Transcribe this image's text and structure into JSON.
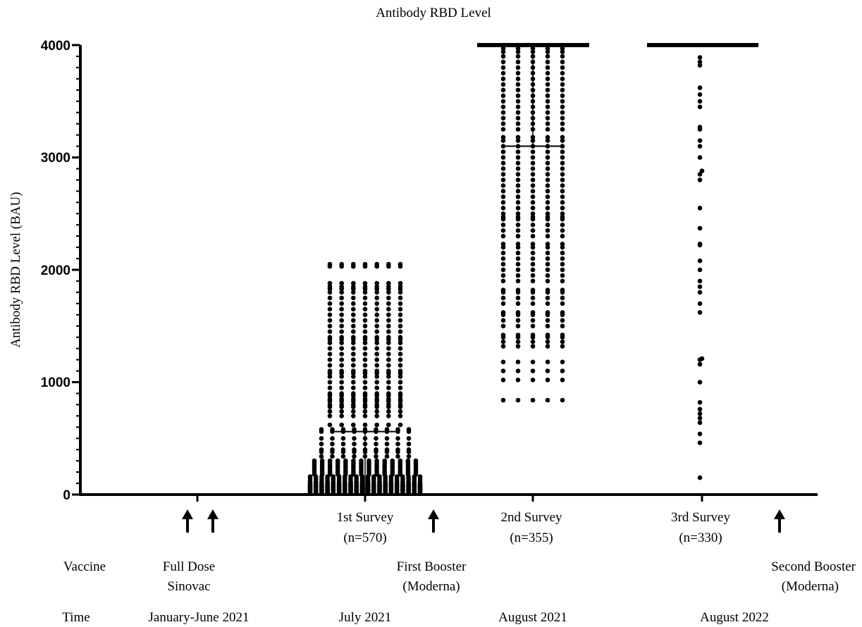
{
  "colors": {
    "ink": "#000000",
    "background": "#ffffff"
  },
  "chart_data": {
    "type": "scatter",
    "title": "Antibody RBD Level",
    "ylabel": "Antibody RBD Level (BAU)",
    "ylim": [
      0,
      4000
    ],
    "yticks": [
      "0",
      "1000",
      "2000",
      "3000",
      "4000"
    ],
    "grid": false,
    "legend": "none",
    "groups": [
      {
        "label": "1st Survey",
        "n_label": "(n=570)",
        "median": 560,
        "ceiling": false
      },
      {
        "label": "2nd Survey",
        "n_label": "(n=355)",
        "median": 3100,
        "ceiling": true
      },
      {
        "label": "3rd Survey",
        "n_label": "(n=330)",
        "median": 4000,
        "ceiling": true
      }
    ],
    "points": {
      "survey1": [
        20,
        25,
        30,
        35,
        40,
        45,
        50,
        55,
        60,
        65,
        70,
        75,
        80,
        85,
        90,
        100,
        110,
        120,
        140,
        160,
        180,
        200,
        220,
        240,
        260,
        280,
        300,
        340,
        380,
        400,
        450,
        500,
        560,
        580,
        620,
        700,
        740,
        780,
        800,
        830,
        850,
        880,
        900,
        950,
        1000,
        1050,
        1080,
        1100,
        1150,
        1200,
        1250,
        1300,
        1350,
        1380,
        1400,
        1450,
        1500,
        1550,
        1600,
        1650,
        1700,
        1750,
        1800,
        1830,
        1850,
        1880,
        2030,
        2050
      ],
      "survey2": [
        840,
        1020,
        1100,
        1180,
        1320,
        1360,
        1400,
        1420,
        1500,
        1550,
        1600,
        1620,
        1700,
        1750,
        1800,
        1820,
        1900,
        1950,
        2000,
        2050,
        2100,
        2150,
        2200,
        2230,
        2300,
        2350,
        2400,
        2450,
        2470,
        2500,
        2550,
        2600,
        2650,
        2700,
        2750,
        2800,
        2850,
        2900,
        2950,
        3000,
        3050,
        3100,
        3150,
        3180,
        3250,
        3300,
        3350,
        3400,
        3450,
        3500,
        3550,
        3600,
        3650,
        3700,
        3750,
        3800,
        3850,
        3900,
        3940,
        3970
      ],
      "survey3": [
        150,
        460,
        540,
        640,
        680,
        720,
        760,
        820,
        1000,
        1160,
        1200,
        1210,
        1620,
        1700,
        1800,
        1850,
        1900,
        2000,
        2080,
        2220,
        2230,
        2370,
        2550,
        2800,
        2850,
        2880,
        3000,
        3100,
        3150,
        3250,
        3270,
        3450,
        3500,
        3560,
        3620,
        3820,
        3850,
        3890
      ]
    },
    "arrows": 4,
    "timeline": {
      "vaccine_label": "Vaccine",
      "time_label": "Time",
      "vaccine_events": [
        {
          "line1": "Full Dose",
          "line2": "Sinovac"
        },
        {
          "line1": "First Booster",
          "line2": "(Moderna)"
        },
        {
          "line1": "Second Booster",
          "line2": "(Moderna)"
        }
      ],
      "times": [
        "January-June 2021",
        "July 2021",
        "August 2021",
        "August 2022"
      ]
    }
  }
}
